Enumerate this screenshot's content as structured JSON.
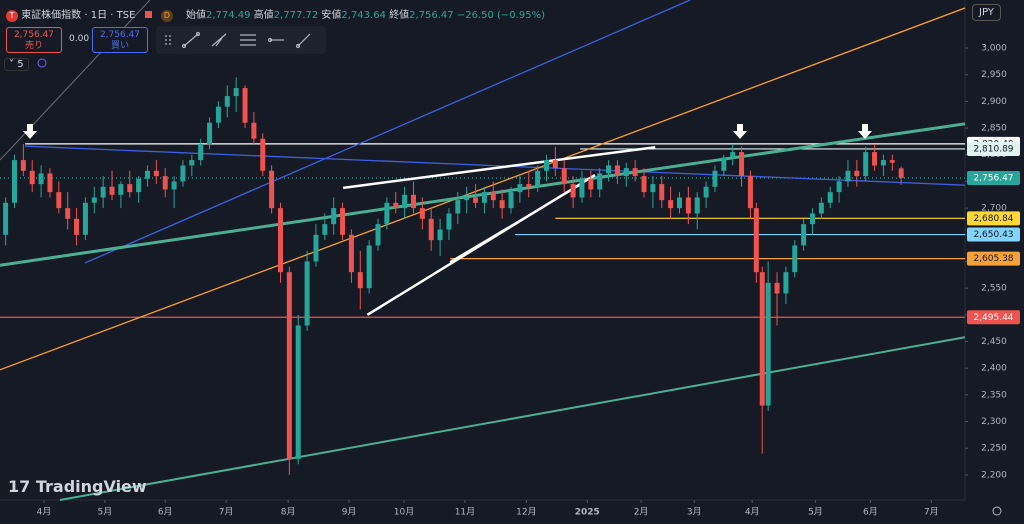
{
  "header": {
    "symbol": "東証株価指数 · 1日 · TSE",
    "badge": "D",
    "open_label": "始値",
    "open": "2,774.49",
    "high_label": "高値",
    "high": "2,777.72",
    "low_label": "安値",
    "low": "2,743.64",
    "close_label": "終値",
    "close": "2,756.47",
    "change": "−26.50 (−0.95%)",
    "currency": "JPY"
  },
  "trade": {
    "sell_price": "2,756.47",
    "sell_label": "売り",
    "spread": "0.00",
    "buy_price": "2,756.47",
    "buy_label": "買い"
  },
  "indicator_count": "5",
  "logo": "TradingView",
  "chart_data": {
    "type": "candlestick",
    "up_color": "#26a69a",
    "down_color": "#ef5350",
    "grid": false,
    "xlim": [
      -0.745,
      15.58
    ],
    "ylim": [
      2153,
      3090
    ],
    "xticks": [
      {
        "value": 0,
        "label": "4月"
      },
      {
        "value": 1.03,
        "label": "5月"
      },
      {
        "value": 2.05,
        "label": "6月"
      },
      {
        "value": 3.08,
        "label": "7月"
      },
      {
        "value": 4.13,
        "label": "8月"
      },
      {
        "value": 5.16,
        "label": "9月"
      },
      {
        "value": 6.09,
        "label": "10月"
      },
      {
        "value": 7.12,
        "label": "11月"
      },
      {
        "value": 8.16,
        "label": "12月"
      },
      {
        "value": 9.19,
        "label": "2025"
      },
      {
        "value": 10.1,
        "label": "2月"
      },
      {
        "value": 11.0,
        "label": "3月"
      },
      {
        "value": 11.98,
        "label": "4月"
      },
      {
        "value": 13.05,
        "label": "5月"
      },
      {
        "value": 13.98,
        "label": "6月"
      },
      {
        "value": 15.01,
        "label": "7月"
      }
    ],
    "yticks": [
      {
        "value": 2200,
        "label": "2,200"
      },
      {
        "value": 2250,
        "label": "2,250"
      },
      {
        "value": 2300,
        "label": "2,300"
      },
      {
        "value": 2350,
        "label": "2,350"
      },
      {
        "value": 2400,
        "label": "2,400"
      },
      {
        "value": 2450,
        "label": "2,450"
      },
      {
        "value": 2500,
        "label": "2,500"
      },
      {
        "value": 2550,
        "label": "2,550"
      },
      {
        "value": 2600,
        "label": "2,600"
      },
      {
        "value": 2650,
        "label": "2,650"
      },
      {
        "value": 2700,
        "label": "2,700"
      },
      {
        "value": 2750,
        "label": "2,750"
      },
      {
        "value": 2800,
        "label": "2,800"
      },
      {
        "value": 2850,
        "label": "2,850"
      },
      {
        "value": 2900,
        "label": "2,900"
      },
      {
        "value": 2950,
        "label": "2,950"
      },
      {
        "value": 3000,
        "label": "3,000"
      }
    ],
    "x": [
      -0.65,
      -0.5,
      -0.35,
      -0.2,
      -0.05,
      0.1,
      0.25,
      0.4,
      0.55,
      0.7,
      0.85,
      1.0,
      1.15,
      1.3,
      1.45,
      1.6,
      1.75,
      1.9,
      2.05,
      2.2,
      2.35,
      2.5,
      2.65,
      2.8,
      2.95,
      3.1,
      3.25,
      3.4,
      3.55,
      3.7,
      3.85,
      4.0,
      4.15,
      4.3,
      4.45,
      4.6,
      4.75,
      4.9,
      5.05,
      5.2,
      5.35,
      5.5,
      5.65,
      5.8,
      5.95,
      6.1,
      6.25,
      6.4,
      6.55,
      6.7,
      6.85,
      7.0,
      7.15,
      7.3,
      7.45,
      7.6,
      7.75,
      7.9,
      8.05,
      8.2,
      8.35,
      8.5,
      8.65,
      8.8,
      8.95,
      9.1,
      9.25,
      9.4,
      9.55,
      9.7,
      9.85,
      10.0,
      10.15,
      10.3,
      10.45,
      10.6,
      10.75,
      10.9,
      11.05,
      11.2,
      11.35,
      11.5,
      11.65,
      11.8,
      11.95,
      12.05,
      12.15,
      12.25,
      12.4,
      12.55,
      12.7,
      12.85,
      13.0,
      13.15,
      13.3,
      13.45,
      13.6,
      13.75,
      13.9,
      14.05,
      14.2,
      14.35,
      14.5
    ],
    "open": [
      2650,
      2710,
      2790,
      2770,
      2745,
      2765,
      2730,
      2700,
      2680,
      2650,
      2710,
      2720,
      2740,
      2725,
      2745,
      2730,
      2755,
      2770,
      2760,
      2735,
      2750,
      2780,
      2790,
      2820,
      2860,
      2890,
      2910,
      2925,
      2860,
      2830,
      2770,
      2700,
      2580,
      2230,
      2480,
      2600,
      2650,
      2670,
      2700,
      2650,
      2580,
      2550,
      2630,
      2670,
      2710,
      2700,
      2725,
      2700,
      2680,
      2640,
      2660,
      2690,
      2715,
      2720,
      2710,
      2730,
      2715,
      2700,
      2730,
      2745,
      2740,
      2770,
      2790,
      2775,
      2745,
      2720,
      2755,
      2735,
      2765,
      2780,
      2760,
      2775,
      2760,
      2730,
      2745,
      2715,
      2700,
      2720,
      2690,
      2720,
      2740,
      2770,
      2795,
      2805,
      2760,
      2700,
      2580,
      2330,
      2560,
      2540,
      2580,
      2630,
      2670,
      2690,
      2710,
      2730,
      2750,
      2770,
      2760,
      2805,
      2780,
      2790,
      2774.49
    ],
    "high": [
      2720,
      2800,
      2820,
      2790,
      2780,
      2775,
      2750,
      2730,
      2700,
      2720,
      2740,
      2760,
      2770,
      2750,
      2770,
      2760,
      2780,
      2790,
      2775,
      2760,
      2790,
      2800,
      2830,
      2870,
      2900,
      2930,
      2945,
      2930,
      2880,
      2840,
      2780,
      2710,
      2590,
      2500,
      2620,
      2670,
      2690,
      2720,
      2710,
      2660,
      2620,
      2640,
      2680,
      2720,
      2730,
      2740,
      2750,
      2720,
      2700,
      2680,
      2700,
      2730,
      2740,
      2745,
      2740,
      2750,
      2735,
      2740,
      2760,
      2770,
      2780,
      2800,
      2815,
      2790,
      2760,
      2770,
      2770,
      2775,
      2790,
      2790,
      2785,
      2790,
      2775,
      2760,
      2760,
      2740,
      2730,
      2740,
      2730,
      2750,
      2780,
      2800,
      2820,
      2815,
      2770,
      2710,
      2590,
      2600,
      2580,
      2590,
      2640,
      2680,
      2700,
      2720,
      2740,
      2760,
      2790,
      2790,
      2815,
      2820,
      2800,
      2800,
      2777.72
    ],
    "low": [
      2630,
      2700,
      2760,
      2730,
      2720,
      2720,
      2690,
      2660,
      2630,
      2640,
      2690,
      2700,
      2715,
      2700,
      2720,
      2710,
      2740,
      2745,
      2720,
      2700,
      2740,
      2760,
      2780,
      2810,
      2850,
      2870,
      2880,
      2850,
      2820,
      2760,
      2690,
      2560,
      2200,
      2220,
      2470,
      2590,
      2640,
      2650,
      2640,
      2560,
      2510,
      2540,
      2620,
      2660,
      2690,
      2680,
      2690,
      2660,
      2620,
      2610,
      2640,
      2670,
      2690,
      2700,
      2690,
      2700,
      2680,
      2690,
      2710,
      2720,
      2730,
      2750,
      2760,
      2730,
      2700,
      2710,
      2720,
      2720,
      2750,
      2745,
      2740,
      2750,
      2720,
      2700,
      2700,
      2680,
      2690,
      2670,
      2660,
      2700,
      2730,
      2760,
      2780,
      2740,
      2680,
      2560,
      2240,
      2320,
      2480,
      2520,
      2570,
      2620,
      2650,
      2680,
      2700,
      2710,
      2740,
      2740,
      2750,
      2770,
      2760,
      2770,
      2743.64
    ],
    "close": [
      2710,
      2790,
      2770,
      2745,
      2765,
      2730,
      2700,
      2680,
      2650,
      2710,
      2720,
      2740,
      2725,
      2745,
      2730,
      2755,
      2770,
      2760,
      2735,
      2750,
      2780,
      2790,
      2820,
      2860,
      2890,
      2910,
      2925,
      2860,
      2830,
      2770,
      2700,
      2580,
      2230,
      2480,
      2600,
      2650,
      2670,
      2700,
      2650,
      2580,
      2550,
      2630,
      2670,
      2710,
      2700,
      2725,
      2700,
      2680,
      2640,
      2660,
      2690,
      2715,
      2720,
      2710,
      2730,
      2715,
      2700,
      2730,
      2745,
      2740,
      2770,
      2790,
      2775,
      2745,
      2720,
      2755,
      2735,
      2765,
      2780,
      2760,
      2775,
      2760,
      2730,
      2745,
      2715,
      2700,
      2720,
      2690,
      2720,
      2740,
      2770,
      2795,
      2805,
      2760,
      2700,
      2580,
      2330,
      2560,
      2540,
      2580,
      2630,
      2670,
      2690,
      2710,
      2730,
      2750,
      2770,
      2760,
      2805,
      2780,
      2790,
      2785,
      2756.47
    ],
    "drawings": [
      {
        "color": "#6b6e75",
        "width": 1,
        "x": [
          -0.745,
          1.79
        ],
        "y": [
          2790,
          3090
        ]
      },
      {
        "color": "#3f5fe0",
        "width": 1.3,
        "x": [
          0.69,
          10.93
        ],
        "y": [
          2597,
          3090
        ]
      },
      {
        "color": "#3f5fe0",
        "width": 1.3,
        "x": [
          -0.32,
          15.58
        ],
        "y": [
          2816,
          2743
        ]
      },
      {
        "color": "#f7a035",
        "width": 1.3,
        "x": [
          -0.745,
          15.58
        ],
        "y": [
          2397,
          3075
        ]
      },
      {
        "color": "#4caf94",
        "width": 3,
        "x": [
          -0.745,
          15.58
        ],
        "y": [
          2593,
          2858
        ]
      },
      {
        "color": "#4caf94",
        "width": 2,
        "x": [
          0.27,
          15.58
        ],
        "y": [
          2153,
          2458
        ]
      },
      {
        "color": "#ffffff",
        "width": 2.5,
        "x": [
          5.06,
          10.34
        ],
        "y": [
          2738,
          2814
        ]
      },
      {
        "color": "#ffffff",
        "width": 2.5,
        "x": [
          5.47,
          9.32
        ],
        "y": [
          2500,
          2762
        ]
      },
      {
        "color": "#ffffff",
        "width": 2,
        "x": [
          6.87,
          9.12
        ],
        "y": [
          2599,
          2747
        ]
      }
    ],
    "levels": [
      {
        "value": 2820.4,
        "label": "2,820.40",
        "color": "#ffffff",
        "text_color": "#131722",
        "from": -0.32,
        "dashed": false
      },
      {
        "value": 2810.89,
        "label": "2,810.89",
        "color": "#e0f2f1",
        "text_color": "#131722",
        "from": 9.07,
        "dashed": false
      },
      {
        "value": 2756.47,
        "label": "2,756.47",
        "color": "#26a69a",
        "text_color": "#ffffff",
        "from": -0.745,
        "dashed": true
      },
      {
        "value": 2680.84,
        "label": "2,680.84",
        "color": "#fdd835",
        "text_color": "#131722",
        "from": 8.65,
        "dashed": false
      },
      {
        "value": 2650.43,
        "label": "2,650.43",
        "color": "#81d4fa",
        "text_color": "#131722",
        "from": 7.97,
        "dashed": false
      },
      {
        "value": 2605.38,
        "label": "2,605.38",
        "color": "#f7a035",
        "text_color": "#131722",
        "from": 6.87,
        "dashed": false
      },
      {
        "value": 2495.44,
        "label": "2,495.44",
        "color": "#ef5350",
        "text_color": "#ffffff",
        "from": -0.745,
        "dashed": false
      }
    ]
  }
}
